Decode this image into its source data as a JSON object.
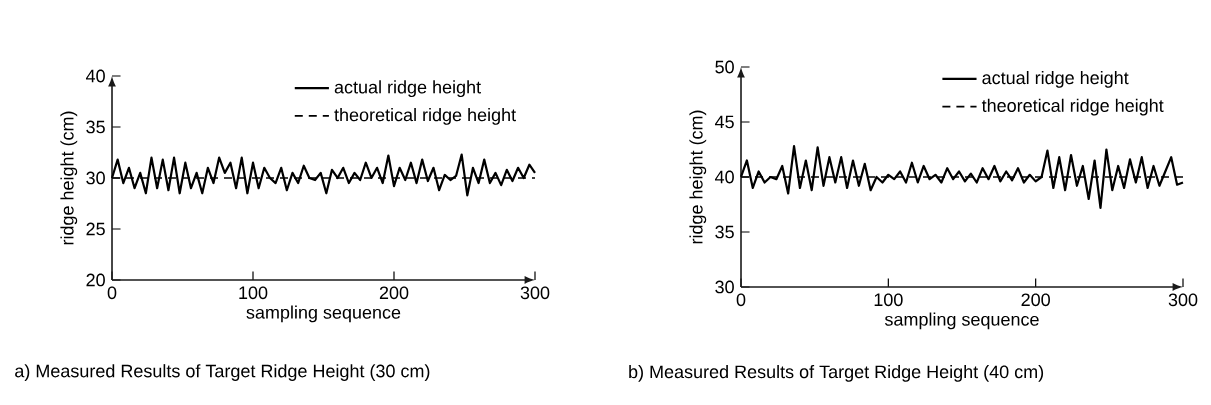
{
  "chart_data": [
    {
      "type": "line",
      "title": "a) Measured Results of Target Ridge Height (30 cm)",
      "xlabel": "sampling sequence",
      "ylabel": "ridge height (cm)",
      "xlim": [
        0,
        300
      ],
      "xticks": [
        0,
        100,
        200,
        300
      ],
      "ylim": [
        20,
        40
      ],
      "yticks": [
        20,
        25,
        30,
        35,
        40
      ],
      "legend": "top right",
      "marker": "none",
      "x": [
        0,
        4,
        8,
        12,
        16,
        20,
        24,
        28,
        32,
        36,
        40,
        44,
        48,
        52,
        56,
        60,
        64,
        68,
        72,
        76,
        80,
        84,
        88,
        92,
        96,
        100,
        104,
        108,
        112,
        116,
        120,
        124,
        128,
        132,
        136,
        140,
        144,
        148,
        152,
        156,
        160,
        164,
        168,
        172,
        176,
        180,
        184,
        188,
        192,
        196,
        200,
        204,
        208,
        212,
        216,
        220,
        224,
        228,
        232,
        236,
        240,
        244,
        248,
        252,
        256,
        260,
        264,
        268,
        272,
        276,
        280,
        284,
        288,
        292,
        296,
        300
      ],
      "series": [
        {
          "name": "actual ridge height",
          "color": "#000000",
          "line_style": "solid",
          "values": [
            30.0,
            31.8,
            29.5,
            31.0,
            29.0,
            30.5,
            28.5,
            32.0,
            29.0,
            31.8,
            28.8,
            32.0,
            28.5,
            31.5,
            29.0,
            30.5,
            28.5,
            31.0,
            29.5,
            32.0,
            30.5,
            31.5,
            29.0,
            32.0,
            28.5,
            31.5,
            29.0,
            31.0,
            30.0,
            29.5,
            31.0,
            28.8,
            30.5,
            29.5,
            31.2,
            30.0,
            29.8,
            30.5,
            28.5,
            30.8,
            30.0,
            31.0,
            29.5,
            30.5,
            29.8,
            31.5,
            30.0,
            31.0,
            29.5,
            32.2,
            29.2,
            31.0,
            29.8,
            31.5,
            29.5,
            31.8,
            29.7,
            31.0,
            28.8,
            30.3,
            29.8,
            30.2,
            32.3,
            28.3,
            31.0,
            29.5,
            31.8,
            29.5,
            30.5,
            29.3,
            30.8,
            29.7,
            31.0,
            30.0,
            31.3,
            30.5
          ]
        }
      ],
      "ref_lines": [
        {
          "axis": "y",
          "value": 30,
          "label": "theoretical ridge height",
          "color": "#000000",
          "line_style": "dashed"
        }
      ]
    },
    {
      "type": "line",
      "title": "b) Measured Results of Target Ridge Height (40 cm)",
      "xlabel": "sampling sequence",
      "ylabel": "ridge height (cm)",
      "xlim": [
        0,
        300
      ],
      "xticks": [
        0,
        100,
        200,
        300
      ],
      "ylim": [
        30,
        50
      ],
      "yticks": [
        30,
        35,
        40,
        45,
        50
      ],
      "legend": "top right",
      "marker": "none",
      "x": [
        0,
        4,
        8,
        12,
        16,
        20,
        24,
        28,
        32,
        36,
        40,
        44,
        48,
        52,
        56,
        60,
        64,
        68,
        72,
        76,
        80,
        84,
        88,
        92,
        96,
        100,
        104,
        108,
        112,
        116,
        120,
        124,
        128,
        132,
        136,
        140,
        144,
        148,
        152,
        156,
        160,
        164,
        168,
        172,
        176,
        180,
        184,
        188,
        192,
        196,
        200,
        204,
        208,
        212,
        216,
        220,
        224,
        228,
        232,
        236,
        240,
        244,
        248,
        252,
        256,
        260,
        264,
        268,
        272,
        276,
        280,
        284,
        288,
        292,
        296,
        300
      ],
      "series": [
        {
          "name": "actual ridge height",
          "color": "#000000",
          "line_style": "solid",
          "values": [
            40.0,
            41.5,
            39.0,
            40.5,
            39.5,
            40.0,
            39.8,
            41.0,
            38.5,
            42.8,
            39.0,
            41.5,
            38.8,
            42.7,
            39.2,
            41.8,
            39.5,
            41.8,
            39.0,
            41.5,
            39.2,
            41.2,
            38.8,
            40.0,
            39.5,
            40.2,
            39.8,
            40.5,
            39.5,
            41.3,
            39.5,
            41.0,
            39.8,
            40.2,
            39.5,
            40.8,
            39.8,
            40.5,
            39.6,
            40.3,
            39.5,
            40.8,
            39.8,
            41.0,
            39.6,
            40.5,
            39.7,
            40.8,
            39.5,
            40.2,
            39.6,
            40.0,
            42.4,
            39.0,
            41.8,
            38.8,
            42.0,
            39.2,
            41.0,
            38.0,
            41.5,
            37.2,
            42.5,
            38.8,
            41.0,
            39.0,
            41.6,
            39.5,
            41.8,
            39.0,
            41.0,
            39.2,
            40.5,
            41.8,
            39.3,
            39.5
          ]
        }
      ],
      "ref_lines": [
        {
          "axis": "y",
          "value": 40,
          "label": "theoretical ridge height",
          "color": "#000000",
          "line_style": "dashed"
        }
      ]
    }
  ]
}
